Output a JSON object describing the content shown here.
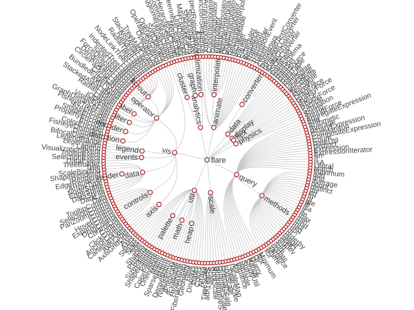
{
  "tree": {
    "name": "flare",
    "children": [
      {
        "name": "analytics",
        "children": [
          {
            "name": "cluster",
            "children": [
              {
                "name": "AgglomerativeCluster"
              },
              {
                "name": "CommunityStructure"
              },
              {
                "name": "HierarchicalCluster"
              },
              {
                "name": "MergeEdge"
              }
            ]
          },
          {
            "name": "graph",
            "children": [
              {
                "name": "BetweennessCentrality"
              },
              {
                "name": "LinkDistance"
              },
              {
                "name": "MaxFlowMinCut"
              },
              {
                "name": "ShortestPaths"
              },
              {
                "name": "SpanningTree"
              }
            ]
          },
          {
            "name": "optimization",
            "children": [
              {
                "name": "AspectRatioBanker"
              }
            ]
          }
        ]
      },
      {
        "name": "animate",
        "children": [
          {
            "name": "Easing"
          },
          {
            "name": "FunctionSequence"
          },
          {
            "name": "interpolate",
            "children": [
              {
                "name": "ArrayInterpolator"
              },
              {
                "name": "ColorInterpolator"
              },
              {
                "name": "DateInterpolator"
              },
              {
                "name": "Interpolator"
              },
              {
                "name": "MatrixInterpolator"
              },
              {
                "name": "NumberInterpolator"
              },
              {
                "name": "ObjectInterpolator"
              },
              {
                "name": "PointInterpolator"
              },
              {
                "name": "RectangleInterpolator"
              }
            ]
          },
          {
            "name": "ISchedulable"
          },
          {
            "name": "Parallel"
          },
          {
            "name": "Pause"
          },
          {
            "name": "Scheduler"
          },
          {
            "name": "Sequence"
          },
          {
            "name": "Transition"
          },
          {
            "name": "Transitioner"
          },
          {
            "name": "TransitionEvent"
          },
          {
            "name": "Tween"
          }
        ]
      },
      {
        "name": "data",
        "children": [
          {
            "name": "converters",
            "children": [
              {
                "name": "Converters"
              },
              {
                "name": "DelimitedTextConverter"
              },
              {
                "name": "GraphMLConverter"
              },
              {
                "name": "IDataConverter"
              },
              {
                "name": "JSONConverter"
              }
            ]
          },
          {
            "name": "DataField"
          },
          {
            "name": "DataSchema"
          },
          {
            "name": "DataSet"
          },
          {
            "name": "DataSource"
          },
          {
            "name": "DataTable"
          },
          {
            "name": "DataUtil"
          }
        ]
      },
      {
        "name": "display",
        "children": [
          {
            "name": "DirtySprite"
          },
          {
            "name": "LineSprite"
          },
          {
            "name": "RectSprite"
          },
          {
            "name": "TextSprite"
          }
        ]
      },
      {
        "name": "flex",
        "children": [
          {
            "name": "FlareVis"
          }
        ]
      },
      {
        "name": "physics",
        "children": [
          {
            "name": "DragForce"
          },
          {
            "name": "GravityForce"
          },
          {
            "name": "IForce"
          },
          {
            "name": "NBodyForce"
          },
          {
            "name": "Particle"
          },
          {
            "name": "Simulation"
          },
          {
            "name": "Spring"
          },
          {
            "name": "SpringForce"
          }
        ]
      },
      {
        "name": "query",
        "children": [
          {
            "name": "AggregateExpression"
          },
          {
            "name": "And"
          },
          {
            "name": "Arithmetic"
          },
          {
            "name": "Average"
          },
          {
            "name": "BinaryExpression"
          },
          {
            "name": "Comparison"
          },
          {
            "name": "CompositeExpression"
          },
          {
            "name": "Count"
          },
          {
            "name": "DateUtil"
          },
          {
            "name": "Distinct"
          },
          {
            "name": "Expression"
          },
          {
            "name": "ExpressionIterator"
          },
          {
            "name": "Fn"
          },
          {
            "name": "If"
          },
          {
            "name": "IsA"
          },
          {
            "name": "Literal"
          },
          {
            "name": "Match"
          },
          {
            "name": "Maximum"
          },
          {
            "name": "methods",
            "children": [
              {
                "name": "add"
              },
              {
                "name": "and"
              },
              {
                "name": "average"
              },
              {
                "name": "count"
              },
              {
                "name": "distinct"
              },
              {
                "name": "div"
              },
              {
                "name": "eq"
              },
              {
                "name": "fn"
              },
              {
                "name": "gt"
              },
              {
                "name": "gte"
              },
              {
                "name": "iff"
              },
              {
                "name": "isa"
              },
              {
                "name": "lt"
              },
              {
                "name": "lte"
              },
              {
                "name": "max"
              },
              {
                "name": "min"
              },
              {
                "name": "mod"
              },
              {
                "name": "mul"
              },
              {
                "name": "neq"
              },
              {
                "name": "not"
              },
              {
                "name": "or"
              },
              {
                "name": "orderby"
              },
              {
                "name": "range"
              },
              {
                "name": "select"
              },
              {
                "name": "stddev"
              },
              {
                "name": "sub"
              },
              {
                "name": "sum"
              },
              {
                "name": "update"
              },
              {
                "name": "variance"
              },
              {
                "name": "where"
              },
              {
                "name": "xor"
              },
              {
                "name": "_"
              }
            ]
          },
          {
            "name": "Minimum"
          },
          {
            "name": "Not"
          },
          {
            "name": "Or"
          },
          {
            "name": "Query"
          },
          {
            "name": "Range"
          },
          {
            "name": "StringUtil"
          },
          {
            "name": "Sum"
          },
          {
            "name": "Variable"
          },
          {
            "name": "Variance"
          },
          {
            "name": "Xor"
          }
        ]
      },
      {
        "name": "scale",
        "children": [
          {
            "name": "IScaleMap"
          },
          {
            "name": "LinearScale"
          },
          {
            "name": "LogScale"
          },
          {
            "name": "OrdinalScale"
          },
          {
            "name": "QuantileScale"
          },
          {
            "name": "QuantitativeScale"
          },
          {
            "name": "RootScale"
          },
          {
            "name": "Scale"
          },
          {
            "name": "ScaleType"
          },
          {
            "name": "TimeScale"
          }
        ]
      },
      {
        "name": "util",
        "children": [
          {
            "name": "Arrays"
          },
          {
            "name": "Colors"
          },
          {
            "name": "Dates"
          },
          {
            "name": "Displays"
          },
          {
            "name": "Filter"
          },
          {
            "name": "Geometry"
          },
          {
            "name": "heap",
            "children": [
              {
                "name": "FibonacciHeap"
              },
              {
                "name": "HeapNode"
              }
            ]
          },
          {
            "name": "IEvaluable"
          },
          {
            "name": "IPredicate"
          },
          {
            "name": "IValueProxy"
          },
          {
            "name": "math",
            "children": [
              {
                "name": "DenseMatrix"
              },
              {
                "name": "IMatrix"
              },
              {
                "name": "SparseMatrix"
              }
            ]
          },
          {
            "name": "Maths"
          },
          {
            "name": "Orientation"
          },
          {
            "name": "palette",
            "children": [
              {
                "name": "ColorPalette"
              },
              {
                "name": "Palette"
              },
              {
                "name": "ShapePalette"
              },
              {
                "name": "SizePalette"
              }
            ]
          },
          {
            "name": "Property"
          },
          {
            "name": "Shapes"
          },
          {
            "name": "Sort"
          },
          {
            "name": "Stats"
          },
          {
            "name": "Strings"
          }
        ]
      },
      {
        "name": "vis",
        "children": [
          {
            "name": "axis",
            "children": [
              {
                "name": "Axes"
              },
              {
                "name": "Axis"
              },
              {
                "name": "AxisGridLine"
              },
              {
                "name": "AxisLabel"
              },
              {
                "name": "CartesianAxes"
              }
            ]
          },
          {
            "name": "controls",
            "children": [
              {
                "name": "AnchorControl"
              },
              {
                "name": "ClickControl"
              },
              {
                "name": "Control"
              },
              {
                "name": "ControlList"
              },
              {
                "name": "DragControl"
              },
              {
                "name": "ExpandControl"
              },
              {
                "name": "HoverControl"
              },
              {
                "name": "IControl"
              },
              {
                "name": "PanZoomControl"
              },
              {
                "name": "SelectionControl"
              },
              {
                "name": "TooltipControl"
              }
            ]
          },
          {
            "name": "data",
            "children": [
              {
                "name": "Data"
              },
              {
                "name": "DataList"
              },
              {
                "name": "DataSprite"
              },
              {
                "name": "EdgeSprite"
              },
              {
                "name": "NodeSprite"
              },
              {
                "name": "render",
                "children": [
                  {
                    "name": "ArrowType"
                  },
                  {
                    "name": "EdgeRenderer"
                  },
                  {
                    "name": "IRenderer"
                  },
                  {
                    "name": "ShapeRenderer"
                  }
                ]
              },
              {
                "name": "ScaleBinding"
              },
              {
                "name": "Tree"
              },
              {
                "name": "TreeBuilder"
              }
            ]
          },
          {
            "name": "events",
            "children": [
              {
                "name": "DataEvent"
              },
              {
                "name": "SelectionEvent"
              },
              {
                "name": "TooltipEvent"
              },
              {
                "name": "VisualizationEvent"
              }
            ]
          },
          {
            "name": "legend",
            "children": [
              {
                "name": "Legend"
              },
              {
                "name": "LegendItem"
              },
              {
                "name": "LegendRange"
              }
            ]
          },
          {
            "name": "operator",
            "children": [
              {
                "name": "distortion",
                "children": [
                  {
                    "name": "BifocalDistortion"
                  },
                  {
                    "name": "Distortion"
                  },
                  {
                    "name": "FisheyeDistortion"
                  }
                ]
              },
              {
                "name": "encoder",
                "children": [
                  {
                    "name": "ColorEncoder"
                  },
                  {
                    "name": "Encoder"
                  },
                  {
                    "name": "PropertyEncoder"
                  },
                  {
                    "name": "ShapeEncoder"
                  },
                  {
                    "name": "SizeEncoder"
                  }
                ]
              },
              {
                "name": "filter",
                "children": [
                  {
                    "name": "FisheyeTreeFilter"
                  },
                  {
                    "name": "GraphDistanceFilter"
                  },
                  {
                    "name": "VisibilityFilter"
                  }
                ]
              },
              {
                "name": "IOperator"
              },
              {
                "name": "label",
                "children": [
                  {
                    "name": "Labeler"
                  },
                  {
                    "name": "RadialLabeler"
                  },
                  {
                    "name": "StackedAreaLabeler"
                  }
                ]
              },
              {
                "name": "layout",
                "children": [
                  {
                    "name": "AxisLayout"
                  },
                  {
                    "name": "BundledEdgeRouter"
                  },
                  {
                    "name": "CircleLayout"
                  },
                  {
                    "name": "CirclePackingLayout"
                  },
                  {
                    "name": "DendrogramLayout"
                  },
                  {
                    "name": "ForceDirectedLayout"
                  },
                  {
                    "name": "IcicleTreeLayout"
                  },
                  {
                    "name": "IndentedTreeLayout"
                  },
                  {
                    "name": "Layout"
                  },
                  {
                    "name": "NodeLinkTreeLayout"
                  },
                  {
                    "name": "PieLayout"
                  },
                  {
                    "name": "RadialTreeLayout"
                  },
                  {
                    "name": "RandomLayout"
                  },
                  {
                    "name": "StackedAreaLayout"
                  },
                  {
                    "name": "TreeMapLayout"
                  }
                ]
              },
              {
                "name": "Operator"
              },
              {
                "name": "OperatorList"
              },
              {
                "name": "OperatorSequence"
              },
              {
                "name": "OperatorSwitch"
              },
              {
                "name": "SortOperator"
              }
            ]
          },
          {
            "name": "Visualization"
          }
        ]
      }
    ]
  },
  "colors": {
    "node_stroke": "#b22222",
    "link": "#c8c8c8",
    "label": "#444444"
  }
}
